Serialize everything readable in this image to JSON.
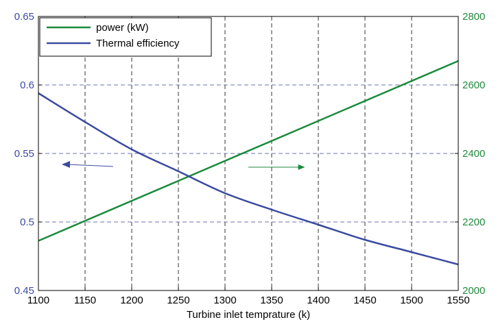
{
  "chart_data": {
    "type": "line",
    "xlabel": "Turbine inlet temprature (k)",
    "x_ticks": [
      "1100",
      "1150",
      "1200",
      "1250",
      "1300",
      "1350",
      "1400",
      "1450",
      "1500",
      "1550"
    ],
    "left_ticks": [
      "0.45",
      "0.5",
      "0.55",
      "0.6",
      "0.65"
    ],
    "right_ticks": [
      "2000",
      "2200",
      "2400",
      "2600",
      "2800"
    ],
    "xlim": [
      1100,
      1550
    ],
    "ylim_left": [
      0.45,
      0.65
    ],
    "ylim_right": [
      2000,
      2800
    ],
    "grid": true,
    "legend_position": "top-left",
    "colors": {
      "power": "#1a8a3c",
      "efficiency": "#3a4a9f",
      "left_axis": "#3b4ba0",
      "right_axis": "#1f8a3c"
    },
    "series": [
      {
        "name": "power (kW)",
        "axis": "right",
        "x": [
          1100,
          1550
        ],
        "y": [
          2145,
          2670
        ]
      },
      {
        "name": "Thermal efficiency",
        "axis": "left",
        "x": [
          1100,
          1150,
          1200,
          1250,
          1300,
          1350,
          1400,
          1450,
          1500,
          1550
        ],
        "y": [
          0.594,
          0.573,
          0.553,
          0.537,
          0.521,
          0.509,
          0.498,
          0.487,
          0.478,
          0.469
        ]
      }
    ],
    "annotations": [
      {
        "type": "arrow",
        "direction": "left",
        "color": "#3a4a9f",
        "from": [
          1180,
          0.5415
        ],
        "to": [
          1125,
          0.5415
        ]
      },
      {
        "type": "arrow",
        "direction": "right",
        "color": "#1a8a3c",
        "from": [
          1325,
          2360
        ],
        "to": [
          1385,
          2360
        ]
      }
    ]
  }
}
